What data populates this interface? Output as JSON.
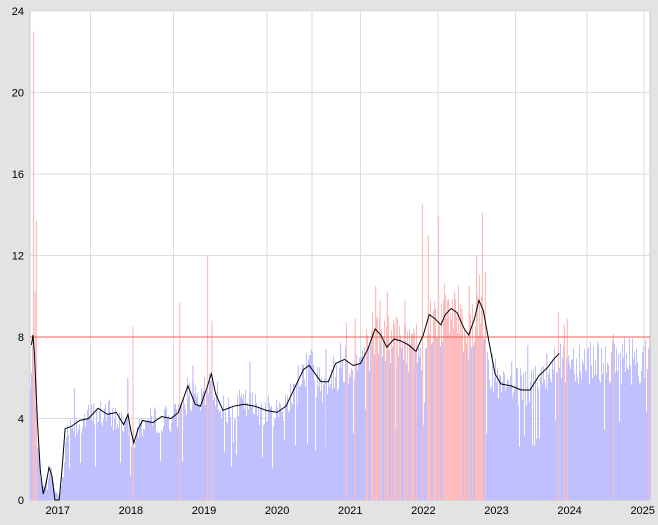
{
  "chart_data": {
    "type": "bar",
    "title": "",
    "xlabel": "",
    "ylabel": "",
    "ylim": [
      0,
      24
    ],
    "xlim": [
      2016.62,
      2025.1
    ],
    "y_ticks": [
      0,
      4,
      8,
      12,
      16,
      20,
      24
    ],
    "x_ticks": [
      {
        "label": "2017",
        "pos": 2017.0
      },
      {
        "label": "2018",
        "pos": 2018.0
      },
      {
        "label": "2019",
        "pos": 2019.0
      },
      {
        "label": "2020",
        "pos": 2020.0
      },
      {
        "label": "2021",
        "pos": 2021.0
      },
      {
        "label": "2022",
        "pos": 2022.0
      },
      {
        "label": "2023",
        "pos": 2023.0
      },
      {
        "label": "2024",
        "pos": 2024.0
      },
      {
        "label": "2025",
        "pos": 2025.0
      }
    ],
    "x_grid": [
      2017.45,
      2018.58,
      2019.86,
      2020.48,
      2021.14,
      2022.2,
      2023.26,
      2024.24,
      2025.02
    ],
    "grid": true,
    "reference_line": {
      "value": 8,
      "color": "#e8615a"
    },
    "bar_colors": {
      "below_reference": "#c0c0ff",
      "above_reference": "#ffbcbc"
    },
    "trend_color": "#000000",
    "trend_line": [
      [
        2016.64,
        7.6
      ],
      [
        2016.66,
        8.1
      ],
      [
        2016.68,
        7.2
      ],
      [
        2016.72,
        4.0
      ],
      [
        2016.76,
        1.5
      ],
      [
        2016.8,
        0.3
      ],
      [
        2016.84,
        0.8
      ],
      [
        2016.88,
        1.6
      ],
      [
        2016.92,
        1.2
      ],
      [
        2016.96,
        0.0
      ],
      [
        2017.02,
        0.0
      ],
      [
        2017.06,
        1.6
      ],
      [
        2017.1,
        3.5
      ],
      [
        2017.18,
        3.6
      ],
      [
        2017.3,
        3.9
      ],
      [
        2017.42,
        4.0
      ],
      [
        2017.55,
        4.5
      ],
      [
        2017.68,
        4.2
      ],
      [
        2017.8,
        4.3
      ],
      [
        2017.9,
        3.7
      ],
      [
        2017.96,
        4.2
      ],
      [
        2018.0,
        3.4
      ],
      [
        2018.04,
        2.8
      ],
      [
        2018.1,
        3.5
      ],
      [
        2018.16,
        3.9
      ],
      [
        2018.3,
        3.8
      ],
      [
        2018.42,
        4.1
      ],
      [
        2018.55,
        4.0
      ],
      [
        2018.65,
        4.3
      ],
      [
        2018.78,
        5.6
      ],
      [
        2018.88,
        4.7
      ],
      [
        2018.95,
        4.6
      ],
      [
        2019.04,
        5.5
      ],
      [
        2019.1,
        6.2
      ],
      [
        2019.16,
        5.2
      ],
      [
        2019.26,
        4.4
      ],
      [
        2019.4,
        4.6
      ],
      [
        2019.55,
        4.7
      ],
      [
        2019.7,
        4.6
      ],
      [
        2019.85,
        4.4
      ],
      [
        2020.0,
        4.3
      ],
      [
        2020.12,
        4.6
      ],
      [
        2020.24,
        5.5
      ],
      [
        2020.36,
        6.4
      ],
      [
        2020.44,
        6.6
      ],
      [
        2020.52,
        6.2
      ],
      [
        2020.6,
        5.8
      ],
      [
        2020.7,
        5.8
      ],
      [
        2020.8,
        6.7
      ],
      [
        2020.92,
        6.9
      ],
      [
        2021.04,
        6.6
      ],
      [
        2021.14,
        6.7
      ],
      [
        2021.24,
        7.4
      ],
      [
        2021.34,
        8.4
      ],
      [
        2021.42,
        8.1
      ],
      [
        2021.5,
        7.5
      ],
      [
        2021.6,
        7.9
      ],
      [
        2021.7,
        7.8
      ],
      [
        2021.8,
        7.6
      ],
      [
        2021.9,
        7.3
      ],
      [
        2022.0,
        8.1
      ],
      [
        2022.08,
        9.1
      ],
      [
        2022.16,
        8.9
      ],
      [
        2022.24,
        8.6
      ],
      [
        2022.3,
        9.1
      ],
      [
        2022.38,
        9.4
      ],
      [
        2022.46,
        9.2
      ],
      [
        2022.56,
        8.4
      ],
      [
        2022.62,
        8.1
      ],
      [
        2022.7,
        8.9
      ],
      [
        2022.76,
        9.8
      ],
      [
        2022.82,
        9.3
      ],
      [
        2022.9,
        7.7
      ],
      [
        2022.98,
        6.2
      ],
      [
        2023.06,
        5.7
      ],
      [
        2023.2,
        5.6
      ],
      [
        2023.34,
        5.4
      ],
      [
        2023.46,
        5.4
      ],
      [
        2023.58,
        6.1
      ],
      [
        2023.7,
        6.5
      ],
      [
        2023.78,
        6.9
      ],
      [
        2023.86,
        7.2
      ]
    ],
    "bar_profile": [
      [
        2016.62,
        5.2
      ],
      [
        2016.66,
        8.0
      ],
      [
        2016.7,
        4.0
      ],
      [
        2016.74,
        1.8
      ],
      [
        2016.78,
        0.5
      ],
      [
        2016.84,
        1.0
      ],
      [
        2016.9,
        1.5
      ],
      [
        2016.96,
        0.4
      ],
      [
        2017.02,
        0.2
      ],
      [
        2017.08,
        1.5
      ],
      [
        2017.12,
        3.5
      ],
      [
        2017.3,
        3.8
      ],
      [
        2017.5,
        4.2
      ],
      [
        2017.7,
        4.2
      ],
      [
        2017.9,
        3.8
      ],
      [
        2018.0,
        3.2
      ],
      [
        2018.04,
        2.9
      ],
      [
        2018.12,
        3.7
      ],
      [
        2018.4,
        4.0
      ],
      [
        2018.65,
        4.1
      ],
      [
        2018.78,
        5.3
      ],
      [
        2018.92,
        4.6
      ],
      [
        2019.1,
        5.8
      ],
      [
        2019.26,
        4.4
      ],
      [
        2019.55,
        4.7
      ],
      [
        2019.85,
        4.4
      ],
      [
        2020.0,
        4.3
      ],
      [
        2020.24,
        5.4
      ],
      [
        2020.4,
        6.6
      ],
      [
        2020.6,
        5.8
      ],
      [
        2020.75,
        6.0
      ],
      [
        2020.9,
        6.9
      ],
      [
        2021.1,
        6.6
      ],
      [
        2021.3,
        8.0
      ],
      [
        2021.42,
        8.0
      ],
      [
        2021.6,
        7.8
      ],
      [
        2021.8,
        7.6
      ],
      [
        2021.95,
        7.6
      ],
      [
        2022.1,
        9.0
      ],
      [
        2022.3,
        9.0
      ],
      [
        2022.45,
        9.2
      ],
      [
        2022.6,
        8.2
      ],
      [
        2022.76,
        9.5
      ],
      [
        2022.86,
        8.8
      ],
      [
        2022.92,
        6.2
      ],
      [
        2023.06,
        5.5
      ],
      [
        2023.3,
        5.5
      ],
      [
        2023.5,
        5.5
      ],
      [
        2023.7,
        6.3
      ],
      [
        2023.86,
        6.9
      ],
      [
        2025.1,
        6.9
      ]
    ],
    "bar_spikes": [
      [
        2016.66,
        23.0
      ],
      [
        2016.7,
        13.7
      ],
      [
        2016.68,
        10.2
      ],
      [
        2017.22,
        5.5
      ],
      [
        2017.95,
        6.0
      ],
      [
        2018.02,
        8.5
      ],
      [
        2018.66,
        9.7
      ],
      [
        2018.84,
        6.6
      ],
      [
        2019.04,
        12.0
      ],
      [
        2019.1,
        8.8
      ],
      [
        2019.62,
        6.8
      ],
      [
        2020.28,
        6.6
      ],
      [
        2020.46,
        7.4
      ],
      [
        2020.66,
        7.4
      ],
      [
        2020.86,
        7.7
      ],
      [
        2020.94,
        8.7
      ],
      [
        2021.06,
        8.9
      ],
      [
        2021.34,
        10.5
      ],
      [
        2021.4,
        9.8
      ],
      [
        2021.5,
        10.2
      ],
      [
        2021.62,
        9.0
      ],
      [
        2021.74,
        9.8
      ],
      [
        2021.86,
        8.4
      ],
      [
        2021.98,
        14.5
      ],
      [
        2022.06,
        13.0
      ],
      [
        2022.2,
        13.9
      ],
      [
        2022.32,
        9.8
      ],
      [
        2022.42,
        10.2
      ],
      [
        2022.52,
        9.4
      ],
      [
        2022.62,
        10.5
      ],
      [
        2022.72,
        12.0
      ],
      [
        2022.8,
        14.1
      ],
      [
        2022.84,
        11.2
      ],
      [
        2023.2,
        6.8
      ],
      [
        2023.42,
        7.6
      ],
      [
        2023.68,
        7.2
      ],
      [
        2023.84,
        9.2
      ],
      [
        2023.92,
        8.6
      ],
      [
        2023.96,
        8.9
      ]
    ]
  }
}
